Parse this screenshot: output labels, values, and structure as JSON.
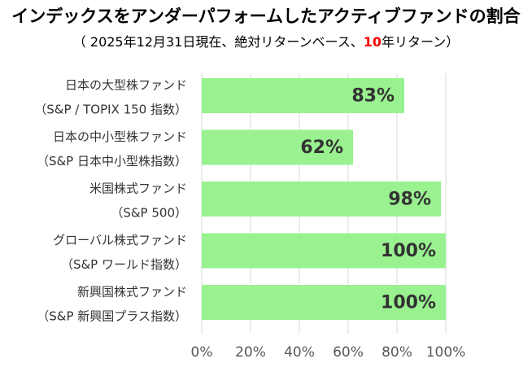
{
  "header": {
    "title": "インデックスをアンダーパフォームしたアクティブファンドの割合",
    "subtitle_prefix": "（ 2025年12月31日現在、絶対リターンベース、",
    "subtitle_highlight": "10",
    "subtitle_suffix": "年リターン）"
  },
  "colors": {
    "bar": "#99f28f",
    "gridline": "#d9d9d9",
    "highlight": "#ff0000"
  },
  "chart_data": {
    "type": "bar",
    "orientation": "horizontal",
    "categories": [
      [
        "日本の大型株ファンド",
        "（S&P / TOPIX 150 指数）"
      ],
      [
        "日本の中小型株ファンド",
        "（S&P 日本中小型株指数）"
      ],
      [
        "米国株式ファンド",
        "（S&P 500）"
      ],
      [
        "グローバル株式ファンド",
        "（S&P ワールド指数）"
      ],
      [
        "新興国株式ファンド",
        "（S&P 新興国プラス指数）"
      ]
    ],
    "values": [
      83,
      62,
      98,
      100,
      100
    ],
    "value_labels": [
      "83%",
      "62%",
      "98%",
      "100%",
      "100%"
    ],
    "xlim": [
      0,
      100
    ],
    "x_ticks": [
      0,
      20,
      40,
      60,
      80,
      100
    ],
    "x_tick_labels": [
      "0%",
      "20%",
      "40%",
      "60%",
      "80%",
      "100%"
    ],
    "grid": true,
    "legend": "none"
  }
}
